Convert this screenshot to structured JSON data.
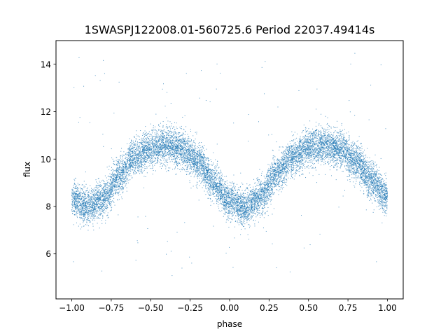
{
  "chart_data": {
    "type": "scatter",
    "title": "1SWASPJ122008.01-560725.6 Period 22037.49414s",
    "xlabel": "phase",
    "ylabel": "flux",
    "xlim": [
      -1.1,
      1.1
    ],
    "ylim": [
      4.1,
      15.0
    ],
    "x_ticks": [
      -1.0,
      -0.75,
      -0.5,
      -0.25,
      0.0,
      0.25,
      0.5,
      0.75,
      1.0
    ],
    "x_tick_labels": [
      "−1.00",
      "−0.75",
      "−0.50",
      "−0.25",
      "0.00",
      "0.25",
      "0.50",
      "0.75",
      "1.00"
    ],
    "y_ticks": [
      6,
      8,
      10,
      12,
      14
    ],
    "y_tick_labels": [
      "6",
      "8",
      "10",
      "12",
      "14"
    ],
    "grid": false,
    "marker_color": "#1f77b4",
    "series": [
      {
        "name": "",
        "profile_phase": [
          -1.0,
          -0.9,
          -0.8,
          -0.7,
          -0.6,
          -0.5,
          -0.4,
          -0.3,
          -0.2,
          -0.1,
          0.0,
          0.1,
          0.2,
          0.3,
          0.4,
          0.5,
          0.6,
          0.7,
          0.8,
          0.9,
          1.0
        ],
        "profile_flux": [
          8.3,
          8.0,
          8.3,
          9.3,
          10.1,
          10.4,
          10.6,
          10.4,
          9.9,
          9.0,
          8.2,
          7.95,
          8.4,
          9.4,
          10.1,
          10.5,
          10.6,
          10.4,
          9.9,
          9.1,
          8.4
        ],
        "n_points": 12000,
        "scatter_sd": 0.38,
        "outlier_fraction": 0.012
      }
    ]
  }
}
